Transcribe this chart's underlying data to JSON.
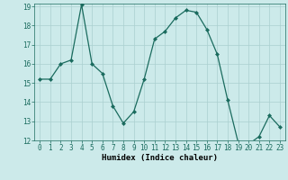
{
  "xlabel": "Humidex (Indice chaleur)",
  "x": [
    0,
    1,
    2,
    3,
    4,
    5,
    6,
    7,
    8,
    9,
    10,
    11,
    12,
    13,
    14,
    15,
    16,
    17,
    18,
    19,
    20,
    21,
    22,
    23
  ],
  "y": [
    15.2,
    15.2,
    16.0,
    16.2,
    19.1,
    16.0,
    15.5,
    13.8,
    12.9,
    13.5,
    15.2,
    17.3,
    17.7,
    18.4,
    18.8,
    18.7,
    17.8,
    16.5,
    14.1,
    11.9,
    11.8,
    12.2,
    13.3,
    12.7
  ],
  "line_color": "#1a6b5e",
  "marker": "D",
  "marker_size": 2.0,
  "bg_color": "#cceaea",
  "grid_color": "#aacfcf",
  "ylim": [
    12,
    19
  ],
  "xlim": [
    -0.5,
    23.5
  ],
  "yticks": [
    12,
    13,
    14,
    15,
    16,
    17,
    18,
    19
  ],
  "xticks": [
    0,
    1,
    2,
    3,
    4,
    5,
    6,
    7,
    8,
    9,
    10,
    11,
    12,
    13,
    14,
    15,
    16,
    17,
    18,
    19,
    20,
    21,
    22,
    23
  ],
  "tick_fontsize": 5.5,
  "xlabel_fontsize": 6.5
}
